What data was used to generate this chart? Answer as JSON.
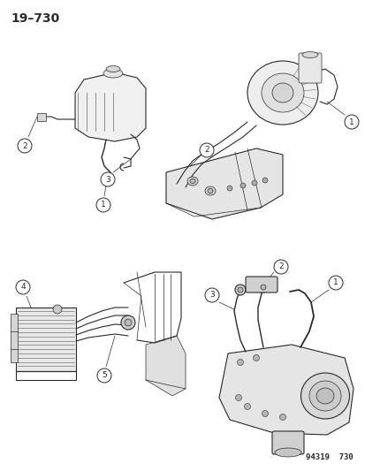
{
  "title": "19–730",
  "footer": "94319  730",
  "bg_color": "#ffffff",
  "line_color": "#2a2a2a",
  "title_fontsize": 10,
  "footer_fontsize": 6.5,
  "label_fontsize": 6.5,
  "fig_width": 4.14,
  "fig_height": 5.33,
  "dpi": 100
}
